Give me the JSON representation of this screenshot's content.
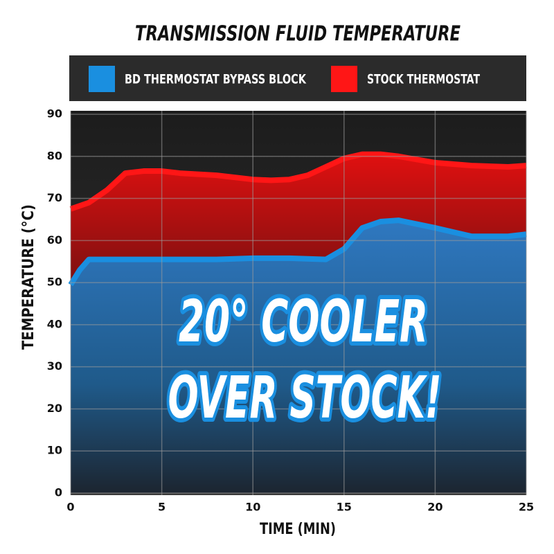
{
  "chart_data": {
    "type": "area",
    "title": "TRANSMISSION FLUID TEMPERATURE",
    "xlabel": "TIME (MIN)",
    "ylabel": "TEMPERATURE (°C)",
    "annotations": [
      "20° COOLER",
      "OVER STOCK!"
    ],
    "xlim": [
      0,
      25
    ],
    "ylim": [
      0,
      90
    ],
    "xticks": [
      0,
      5,
      10,
      15,
      20,
      25
    ],
    "yticks": [
      0,
      10,
      20,
      30,
      40,
      50,
      60,
      70,
      80,
      90
    ],
    "grid": true,
    "series": [
      {
        "name": "STOCK THERMOSTAT",
        "color": "#ff1616",
        "x": [
          0,
          1,
          2,
          3,
          4,
          5,
          6,
          8,
          10,
          11,
          12,
          13,
          14,
          15,
          16,
          17,
          18,
          20,
          22,
          24,
          25
        ],
        "values": [
          67.5,
          69,
          72,
          76,
          76.5,
          76.5,
          76,
          75.5,
          74.5,
          74.3,
          74.5,
          75.5,
          77.5,
          79.5,
          80.5,
          80.5,
          80,
          78.5,
          77.8,
          77.5,
          77.8
        ]
      },
      {
        "name": "BD THERMOSTAT BYPASS BLOCK",
        "color": "#1a8fe0",
        "x": [
          0,
          0.5,
          1,
          2,
          3,
          5,
          8,
          10,
          12,
          14,
          15,
          16,
          17,
          18,
          20,
          22,
          24,
          25
        ],
        "values": [
          49.5,
          53,
          55.5,
          55.5,
          55.5,
          55.5,
          55.5,
          55.8,
          55.8,
          55.5,
          58,
          63,
          64.5,
          64.8,
          63,
          61,
          61,
          61.5
        ]
      }
    ]
  }
}
